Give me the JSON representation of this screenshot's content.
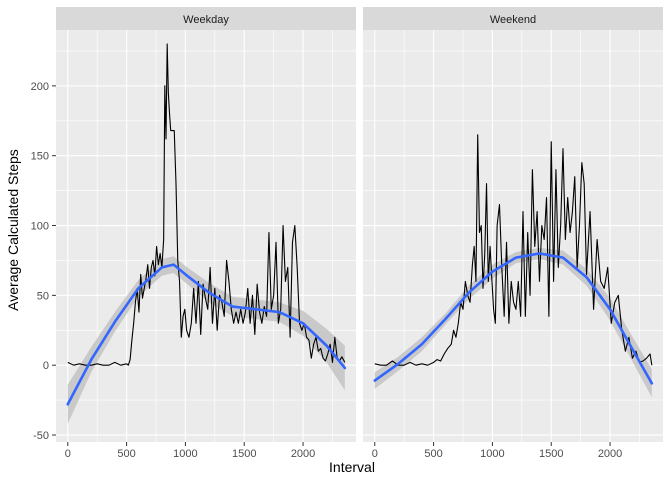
{
  "chart_data": {
    "type": "line",
    "xlabel": "Interval",
    "ylabel": "Average Calculated Steps",
    "xlim": [
      -100,
      2450
    ],
    "ylim": [
      -55,
      240
    ],
    "x_ticks": [
      0,
      500,
      1000,
      1500,
      2000
    ],
    "y_ticks": [
      -50,
      0,
      50,
      100,
      150,
      200
    ],
    "grid": true,
    "colors": {
      "panel_background": "#EBEBEB",
      "strip_background": "#D9D9D9",
      "grid": "#FFFFFF",
      "line": "#000000",
      "smooth": "#3366FF",
      "confidence_band": "#BEBEBE"
    },
    "panels": [
      {
        "strip_label": "Weekday",
        "series": [
          {
            "type": "line",
            "x": [
              0,
              50,
              100,
              150,
              200,
              250,
              300,
              350,
              400,
              450,
              500,
              515,
              530,
              545,
              560,
              575,
              590,
              605,
              620,
              635,
              650,
              665,
              680,
              695,
              710,
              725,
              740,
              755,
              770,
              785,
              800,
              815,
              825,
              835,
              845,
              855,
              865,
              875,
              890,
              905,
              920,
              935,
              950,
              965,
              980,
              995,
              1010,
              1030,
              1050,
              1070,
              1090,
              1110,
              1130,
              1150,
              1170,
              1190,
              1210,
              1230,
              1250,
              1270,
              1290,
              1310,
              1330,
              1350,
              1370,
              1390,
              1410,
              1430,
              1450,
              1470,
              1490,
              1510,
              1530,
              1550,
              1570,
              1590,
              1610,
              1630,
              1650,
              1670,
              1690,
              1710,
              1730,
              1750,
              1770,
              1790,
              1810,
              1830,
              1850,
              1870,
              1890,
              1910,
              1930,
              1950,
              1970,
              1990,
              2010,
              2030,
              2050,
              2070,
              2090,
              2110,
              2130,
              2150,
              2170,
              2190,
              2210,
              2230,
              2250,
              2270,
              2290,
              2310,
              2330,
              2355
            ],
            "y": [
              2,
              0,
              1,
              0,
              0,
              1,
              0,
              0,
              2,
              0,
              1,
              0,
              4,
              18,
              30,
              45,
              55,
              38,
              65,
              48,
              55,
              62,
              72,
              55,
              70,
              75,
              64,
              85,
              72,
              80,
              70,
              90,
              200,
              162,
              230,
              195,
              180,
              168,
              168,
              168,
              130,
              75,
              60,
              20,
              35,
              40,
              25,
              20,
              30,
              55,
              30,
              60,
              22,
              58,
              48,
              40,
              70,
              30,
              55,
              25,
              50,
              45,
              35,
              75,
              60,
              40,
              30,
              38,
              30,
              40,
              30,
              38,
              55,
              30,
              50,
              22,
              58,
              38,
              30,
              42,
              35,
              95,
              40,
              50,
              88,
              30,
              40,
              100,
              60,
              70,
              20,
              88,
              100,
              70,
              30,
              25,
              30,
              20,
              18,
              5,
              15,
              20,
              10,
              12,
              5,
              3,
              8,
              15,
              2,
              20,
              5,
              3,
              6,
              2
            ]
          },
          {
            "type": "smooth",
            "x": [
              0,
              200,
              400,
              600,
              800,
              900,
              1000,
              1200,
              1400,
              1600,
              1800,
              2000,
              2200,
              2355
            ],
            "y": [
              -28,
              4,
              31,
              55,
              70,
              72,
              65,
              52,
              42,
              40,
              38,
              30,
              14,
              -2
            ],
            "ci_lower": [
              -42,
              -5,
              24,
              49,
              64,
              66,
              59,
              45,
              35,
              33,
              31,
              21,
              2,
              -18
            ],
            "ci_upper": [
              -14,
              13,
              38,
              61,
              76,
              78,
              71,
              59,
              49,
              47,
              45,
              39,
              26,
              14
            ]
          }
        ]
      },
      {
        "strip_label": "Weekend",
        "series": [
          {
            "type": "line",
            "x": [
              0,
              50,
              100,
              150,
              200,
              250,
              300,
              350,
              400,
              450,
              500,
              530,
              560,
              590,
              620,
              650,
              670,
              690,
              710,
              730,
              750,
              770,
              790,
              810,
              830,
              845,
              860,
              875,
              890,
              905,
              920,
              935,
              950,
              965,
              980,
              995,
              1010,
              1025,
              1040,
              1060,
              1080,
              1100,
              1120,
              1140,
              1160,
              1180,
              1200,
              1220,
              1240,
              1260,
              1280,
              1300,
              1320,
              1340,
              1360,
              1380,
              1400,
              1420,
              1440,
              1460,
              1480,
              1500,
              1520,
              1540,
              1560,
              1580,
              1600,
              1620,
              1640,
              1660,
              1680,
              1700,
              1720,
              1740,
              1760,
              1780,
              1800,
              1830,
              1860,
              1890,
              1920,
              1950,
              1980,
              2010,
              2040,
              2070,
              2100,
              2130,
              2160,
              2190,
              2220,
              2250,
              2280,
              2310,
              2340,
              2355
            ],
            "y": [
              1,
              0,
              0,
              3,
              0,
              0,
              2,
              0,
              1,
              0,
              2,
              4,
              3,
              8,
              12,
              15,
              25,
              20,
              30,
              45,
              40,
              60,
              50,
              45,
              72,
              85,
              60,
              165,
              95,
              100,
              55,
              80,
              130,
              60,
              85,
              62,
              40,
              30,
              100,
              115,
              70,
              35,
              88,
              30,
              60,
              45,
              40,
              60,
              35,
              110,
              35,
              95,
              50,
              140,
              85,
              110,
              60,
              100,
              90,
              120,
              35,
              160,
              60,
              140,
              70,
              100,
              155,
              90,
              120,
              95,
              110,
              135,
              70,
              100,
              145,
              130,
              65,
              110,
              40,
              90,
              60,
              55,
              70,
              30,
              45,
              50,
              25,
              10,
              20,
              5,
              10,
              2,
              3,
              5,
              8,
              0
            ]
          },
          {
            "type": "smooth",
            "x": [
              0,
              200,
              400,
              600,
              800,
              1000,
              1200,
              1400,
              1600,
              1800,
              2000,
              2200,
              2355
            ],
            "y": [
              -11,
              1,
              15,
              33,
              52,
              67,
              77,
              80,
              77,
              63,
              40,
              10,
              -13
            ],
            "ci_lower": [
              -17,
              -4,
              10,
              29,
              47,
              62,
              73,
              76,
              72,
              57,
              32,
              1,
              -23
            ],
            "ci_upper": [
              -5,
              6,
              20,
              37,
              57,
              72,
              81,
              84,
              82,
              69,
              48,
              19,
              -3
            ]
          }
        ]
      }
    ]
  }
}
